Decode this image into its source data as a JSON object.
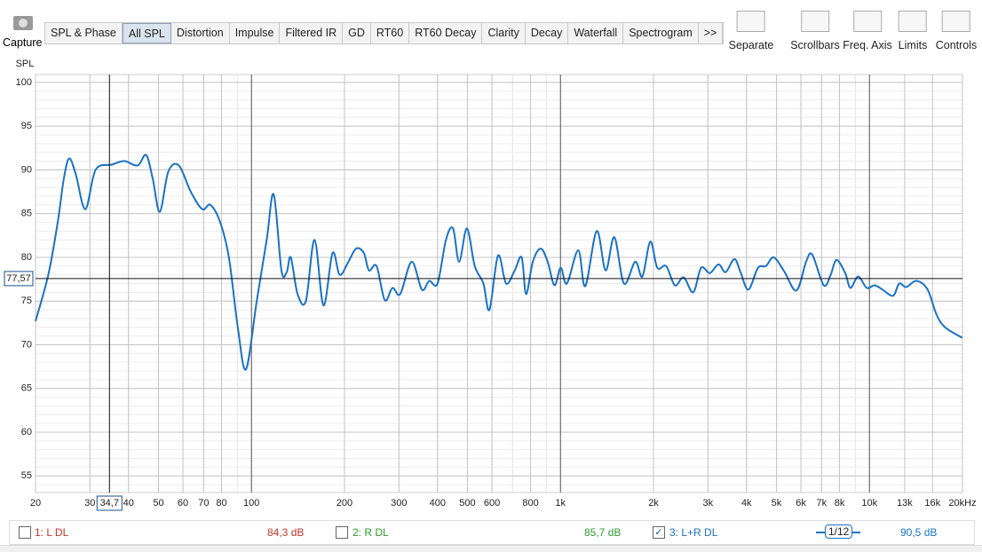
{
  "toolbar": {
    "capture": "Capture",
    "tabs": [
      "SPL & Phase",
      "All SPL",
      "Distortion",
      "Impulse",
      "Filtered IR",
      "GD",
      "RT60",
      "RT60 Decay",
      "Clarity",
      "Decay",
      "Waterfall",
      "Spectrogram",
      ">>"
    ],
    "selected_tab": "All SPL",
    "buttons": [
      "Separate",
      "Scrollbars",
      "Freq. Axis",
      "Limits",
      "Controls"
    ]
  },
  "chart_data": {
    "type": "line",
    "ylabel": "SPL",
    "xscale": "log",
    "xlim": [
      20,
      20000
    ],
    "ylim": [
      53.1,
      100.9
    ],
    "xticks": [
      20,
      30,
      40,
      50,
      60,
      70,
      80,
      100,
      200,
      300,
      400,
      500,
      600,
      800,
      {
        "value": 1000,
        "label": "1k"
      },
      {
        "value": 2000,
        "label": "2k"
      },
      {
        "value": 3000,
        "label": "3k"
      },
      {
        "value": 4000,
        "label": "4k"
      },
      {
        "value": 5000,
        "label": "5k"
      },
      {
        "value": 6000,
        "label": "6k"
      },
      {
        "value": 7000,
        "label": "7k"
      },
      {
        "value": 8000,
        "label": "8k"
      },
      {
        "value": 10000,
        "label": "10k"
      },
      {
        "value": 13000,
        "label": "13k"
      },
      {
        "value": 16000,
        "label": "16k"
      },
      {
        "value": 20000,
        "label": "20kHz"
      }
    ],
    "yticks": [
      55,
      60,
      65,
      70,
      75,
      80,
      85,
      90,
      95,
      100
    ],
    "grid": true,
    "cursor": {
      "x": {
        "value": 34.7,
        "label": "34,7"
      },
      "y": {
        "value": 77.57,
        "label": "77,57"
      }
    },
    "series": [
      {
        "name": "3: L+R DL",
        "color": "#1a72c4",
        "level": "90,5 dB",
        "smoothing": "1/12",
        "x": [
          20,
          22,
          23.6,
          24.7,
          25.7,
          27,
          29,
          31.3,
          35.3,
          38.8,
          42.8,
          45.6,
          47.9,
          50.5,
          53.8,
          58.2,
          63.6,
          69.3,
          73.6,
          79.2,
          84.5,
          90.3,
          96,
          104,
          112,
          118,
          125,
          130,
          134,
          141,
          150,
          160,
          171,
          183,
          193,
          206,
          218,
          231,
          240,
          254,
          270,
          286,
          303,
          330,
          356,
          376,
          400,
          426,
          449,
          470,
          498,
          528,
          563,
          589,
          628,
          667,
          711,
          749,
          774,
          814,
          863,
          909,
          956,
          1002,
          1049,
          1142,
          1203,
          1310,
          1400,
          1494,
          1605,
          1746,
          1841,
          1953,
          2058,
          2198,
          2346,
          2504,
          2690,
          2852,
          3044,
          3249,
          3424,
          3655,
          3826,
          4055,
          4359,
          4622,
          4901,
          5296,
          5803,
          6238,
          6530,
          7110,
          7490,
          7824,
          8346,
          8676,
          9193,
          9800,
          10390,
          11030,
          11925,
          12480,
          13140,
          14200,
          15430,
          16460,
          17560,
          19950
        ],
        "values": [
          72.7,
          78,
          84,
          89,
          91.3,
          89.5,
          85.5,
          90,
          90.6,
          91,
          90.5,
          91.7,
          89,
          85.2,
          89.8,
          90.5,
          87.5,
          85.5,
          86,
          84,
          80,
          72,
          67.2,
          75,
          82,
          87.2,
          78.5,
          78.3,
          80,
          75.8,
          75,
          82,
          74.5,
          80.5,
          78,
          79.5,
          81,
          80.5,
          78.5,
          79,
          75.1,
          76.5,
          75.8,
          79.5,
          76.3,
          77.3,
          77,
          82,
          83.3,
          79.5,
          83.3,
          79,
          77,
          74,
          80.2,
          77,
          78.5,
          80,
          75.8,
          79.5,
          81,
          79.5,
          76.8,
          78.8,
          77,
          80.8,
          76.7,
          83,
          78.5,
          82.3,
          77,
          79.5,
          77.8,
          81.8,
          78.8,
          79,
          76.8,
          77.7,
          76,
          78.8,
          78.2,
          79.2,
          78.3,
          79.8,
          78.3,
          76.3,
          78.8,
          79,
          80,
          78.4,
          76.2,
          79.5,
          80.3,
          76.8,
          78,
          79.7,
          78.2,
          76.5,
          77.8,
          76.5,
          76.8,
          76.3,
          75.6,
          77,
          76.6,
          77.3,
          76.3,
          73.5,
          72,
          70.8
        ]
      }
    ]
  },
  "traces": [
    {
      "name": "1: L DL",
      "level": "84,3 dB",
      "color": "#c8352a",
      "checked": false
    },
    {
      "name": "2: R DL",
      "level": "85,7 dB",
      "color": "#2f9a2f",
      "checked": false
    }
  ]
}
